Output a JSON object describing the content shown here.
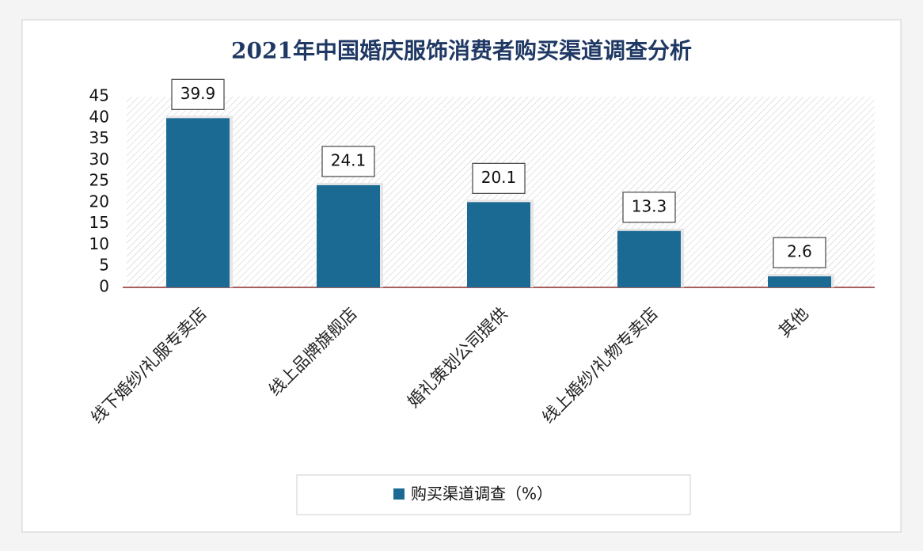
{
  "chart_data": {
    "type": "bar",
    "title": "2021年中国婚庆服饰消费者购买渠道调查分析",
    "categories": [
      "线下婚纱/礼服专卖店",
      "线上品牌旗舰店",
      "婚礼策划公司提供",
      "线上婚纱/礼物专卖店",
      "其他"
    ],
    "series": [
      {
        "name": "购买渠道调查（%）",
        "color": "#1b6a94",
        "values": [
          39.9,
          24.1,
          20.1,
          13.3,
          2.6
        ]
      }
    ],
    "ylim": [
      0,
      45
    ],
    "yticks": [
      0,
      5,
      10,
      15,
      20,
      25,
      30,
      35,
      40,
      45
    ],
    "grid": false
  }
}
